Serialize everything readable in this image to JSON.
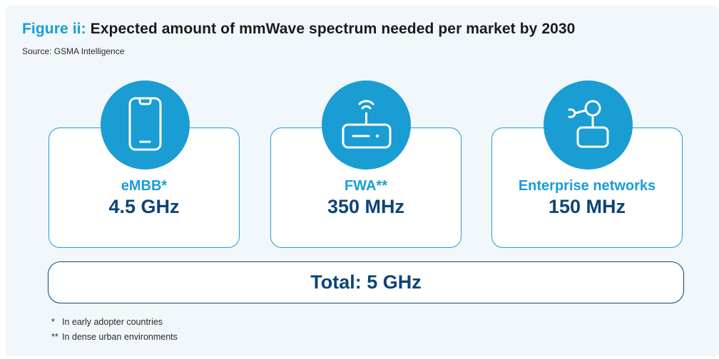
{
  "figure": {
    "label": "Figure ii:",
    "title": "Expected amount of mmWave spectrum needed per market by 2030",
    "source": "Source: GSMA Intelligence"
  },
  "markets": [
    {
      "label": "eMBB*",
      "value": "4.5 GHz",
      "icon": "smartphone-icon"
    },
    {
      "label": "FWA**",
      "value": "350 MHz",
      "icon": "router-icon"
    },
    {
      "label": "Enterprise networks",
      "value": "150 MHz",
      "icon": "robot-arm-icon"
    }
  ],
  "total": {
    "text": "Total: 5 GHz"
  },
  "footnotes": [
    {
      "marker": "*",
      "text": "In early adopter countries"
    },
    {
      "marker": "**",
      "text": "In dense urban environments"
    }
  ],
  "colors": {
    "accent": "#1a9dd3",
    "dark_blue": "#0c4478",
    "panel_bg": "#f1f7fa"
  }
}
